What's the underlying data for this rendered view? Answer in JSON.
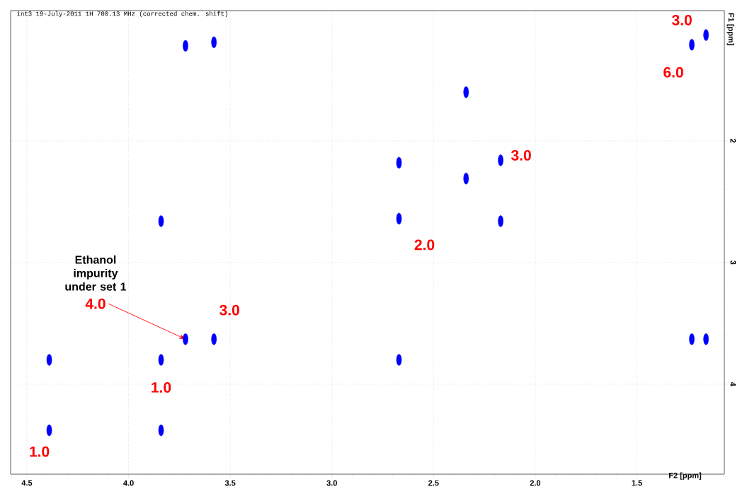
{
  "chart_data": {
    "type": "scatter",
    "title": "int3 19-July-2011 1H 700.13 MHz (corrected chem. shift)",
    "xlabel": "F2 [ppm]",
    "ylabel": "F1 [ppm]",
    "xlim": [
      4.58,
      1.07
    ],
    "ylim": [
      4.74,
      0.93
    ],
    "xticks": [
      4.5,
      {
        "value": 4,
        "label": "4.0"
      },
      3.5,
      {
        "value": 3,
        "label": "3.0"
      },
      2.5,
      {
        "value": 2,
        "label": "2.0"
      },
      1.5
    ],
    "yticks": [
      2,
      3,
      4
    ],
    "grid": true,
    "series": [
      {
        "color": "#0000ff",
        "x": [
          3.72,
          3.58,
          3.84,
          2.67,
          2.34,
          2.34,
          2.17,
          2.17,
          2.67,
          1.23,
          1.16,
          3.72,
          3.58,
          4.39,
          3.84,
          4.39,
          3.84,
          2.67,
          1.23,
          1.16
        ],
        "values": [
          1.22,
          1.19,
          2.66,
          2.18,
          1.6,
          2.31,
          2.16,
          2.66,
          2.64,
          1.21,
          1.13,
          3.63,
          3.63,
          3.8,
          3.8,
          4.38,
          4.38,
          3.8,
          3.63,
          3.63
        ]
      }
    ],
    "annotations": [
      {
        "text": "3.0",
        "x": 1.16,
        "y": 1.13
      },
      {
        "text": "6.0",
        "x": 1.23,
        "y": 1.21
      },
      {
        "text": "3.0",
        "x": 2.17,
        "y": 2.16
      },
      {
        "text": "2.0",
        "x": 2.67,
        "y": 2.64
      },
      {
        "text": "3.0",
        "x": 3.58,
        "y": 3.63
      },
      {
        "text": "4.0",
        "x": 3.72,
        "y": 3.63
      },
      {
        "text": "1.0",
        "x": 3.84,
        "y": 3.8
      },
      {
        "text": "1.0",
        "x": 4.39,
        "y": 4.38
      },
      "Ethanol impurity under set 1"
    ]
  }
}
